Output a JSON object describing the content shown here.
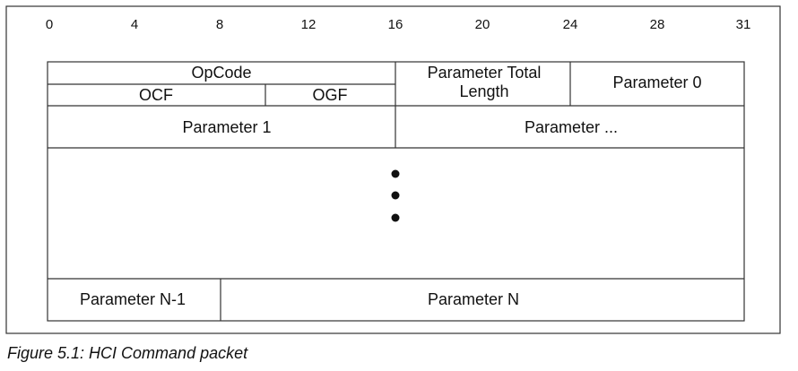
{
  "bit_positions": [
    "0",
    "4",
    "8",
    "12",
    "16",
    "20",
    "24",
    "28",
    "31"
  ],
  "fields": {
    "opcode": "OpCode",
    "ocf": "OCF",
    "ogf": "OGF",
    "parameter_total_length": [
      "Parameter Total",
      "Length"
    ],
    "parameter_0": "Parameter 0",
    "parameter_1": "Parameter 1",
    "parameter_more": "Parameter ...",
    "parameter_n_minus_1": "Parameter N-1",
    "parameter_n": "Parameter N"
  },
  "caption": "Figure 5.1:  HCI Command packet"
}
